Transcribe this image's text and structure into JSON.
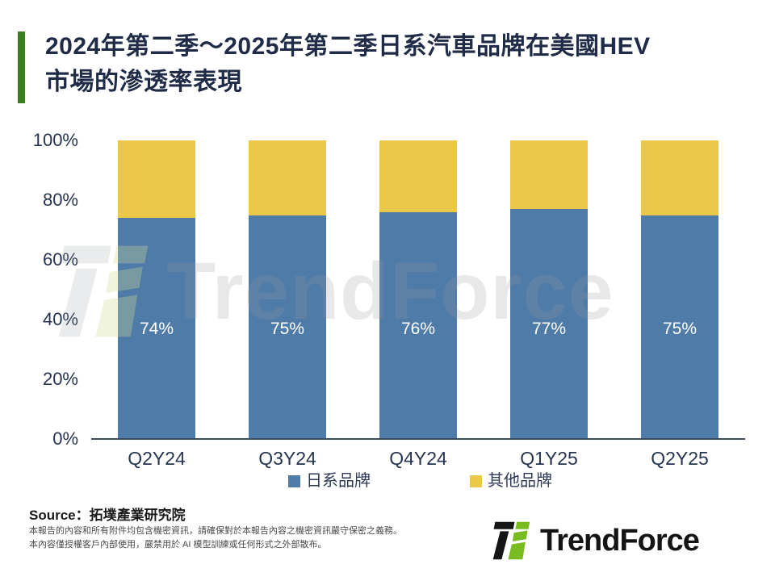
{
  "header": {
    "title_line1": "2024年第二季～2025年第二季日系汽車品牌在美國HEV",
    "title_line2": "市場的滲透率表現",
    "accent_color": "#3C7D1F"
  },
  "chart_data": {
    "type": "bar",
    "stacked": true,
    "title": "2024年第二季～2025年第二季日系汽車品牌在美國HEV市場的滲透率表現",
    "categories": [
      "Q2Y24",
      "Q3Y24",
      "Q4Y24",
      "Q1Y25",
      "Q2Y25"
    ],
    "series": [
      {
        "name": "日系品牌",
        "color": "#4F7BA8",
        "values": [
          74,
          75,
          76,
          77,
          75
        ]
      },
      {
        "name": "其他品牌",
        "color": "#ECC84A",
        "values": [
          26,
          25,
          24,
          23,
          25
        ]
      }
    ],
    "value_labels": [
      "74%",
      "75%",
      "76%",
      "77%",
      "75%"
    ],
    "xlabel": "",
    "ylabel": "",
    "ylim": [
      0,
      100
    ],
    "yticks": [
      "0%",
      "20%",
      "40%",
      "60%",
      "80%",
      "100%"
    ],
    "grid": false,
    "legend_position": "bottom"
  },
  "watermark": {
    "text": "TrendForce"
  },
  "footer": {
    "source": "Source：拓墣產業研究院",
    "disclaimer_line1": "本報告的內容和所有附件均包含機密資訊，請確保對於本報告內容之機密資訊嚴守保密之義務。",
    "disclaimer_line2": "本內容僅授權客戶內部使用，嚴禁用於 AI 模型訓練或任何形式之外部散布。",
    "logo_text": "TrendForce",
    "logo_black": "#161616",
    "logo_green": "#79BC20"
  }
}
